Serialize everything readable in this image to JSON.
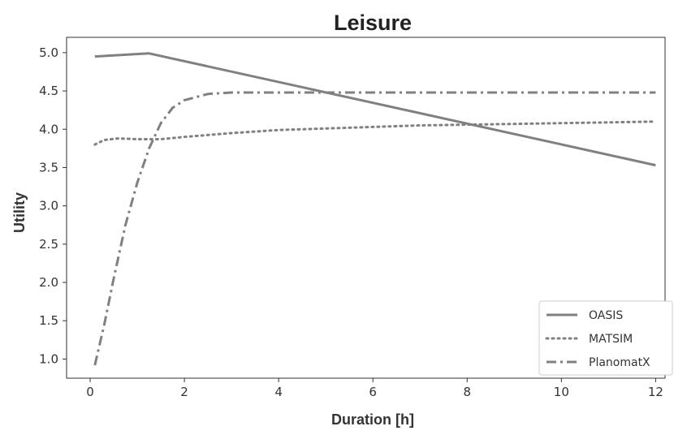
{
  "chart_data": {
    "type": "line",
    "title": "Leisure",
    "xlabel": "Duration [h]",
    "ylabel": "Utility",
    "xlim": [
      -0.5,
      12.2
    ],
    "ylim": [
      0.75,
      5.2
    ],
    "xticks": [
      0,
      2,
      4,
      6,
      8,
      10,
      12
    ],
    "xtick_labels": [
      "0",
      "2",
      "4",
      "6",
      "8",
      "10",
      "12"
    ],
    "yticks": [
      1.0,
      1.5,
      2.0,
      2.5,
      3.0,
      3.5,
      4.0,
      4.5,
      5.0
    ],
    "ytick_labels": [
      "1.0",
      "1.5",
      "2.0",
      "2.5",
      "3.0",
      "3.5",
      "4.0",
      "4.5",
      "5.0"
    ],
    "grid": false,
    "legend_position": "lower-right",
    "line_color": "#808080",
    "series": [
      {
        "name": "OASIS",
        "style": "solid",
        "x": [
          0.1,
          1.25,
          12
        ],
        "y": [
          4.95,
          4.99,
          3.53
        ]
      },
      {
        "name": "MATSIM",
        "style": "dotted",
        "x": [
          0.1,
          0.3,
          0.6,
          1.0,
          1.5,
          2,
          3,
          4,
          5,
          6,
          7,
          8,
          9,
          10,
          11,
          12
        ],
        "y": [
          3.8,
          3.86,
          3.88,
          3.87,
          3.87,
          3.9,
          3.95,
          3.99,
          4.01,
          4.03,
          4.05,
          4.06,
          4.07,
          4.08,
          4.09,
          4.1
        ]
      },
      {
        "name": "PlanomatX",
        "style": "dashdot",
        "x": [
          0.1,
          0.3,
          0.5,
          0.75,
          1.0,
          1.25,
          1.5,
          1.75,
          2.0,
          2.5,
          3.0,
          4,
          6,
          8,
          10,
          12
        ],
        "y": [
          0.92,
          1.45,
          2.05,
          2.75,
          3.3,
          3.75,
          4.08,
          4.28,
          4.38,
          4.46,
          4.48,
          4.48,
          4.48,
          4.48,
          4.48,
          4.48
        ]
      }
    ]
  }
}
